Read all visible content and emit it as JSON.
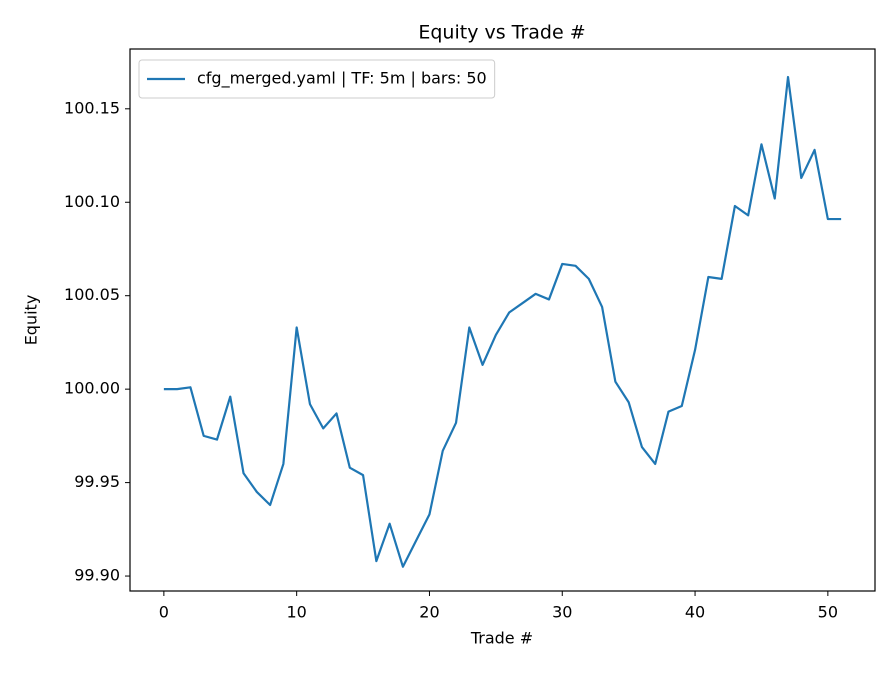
{
  "chart_data": {
    "type": "line",
    "title": "Equity vs Trade #",
    "x_label": "Trade #",
    "y_label": "Equity",
    "x": [
      0,
      1,
      2,
      3,
      4,
      5,
      6,
      7,
      8,
      9,
      10,
      11,
      12,
      13,
      14,
      15,
      16,
      17,
      18,
      19,
      20,
      21,
      22,
      23,
      24,
      25,
      26,
      27,
      28,
      29,
      30,
      31,
      32,
      33,
      34,
      35,
      36,
      37,
      38,
      39,
      40,
      41,
      42,
      43,
      44,
      45,
      46,
      47,
      48,
      49,
      50,
      51
    ],
    "series": [
      {
        "name": "cfg_merged.yaml | TF: 5m | bars: 50",
        "color": "#1f77b4",
        "values": [
          100.0,
          100.0,
          100.001,
          99.975,
          99.973,
          99.996,
          99.955,
          99.945,
          99.938,
          99.96,
          100.033,
          99.992,
          99.979,
          99.987,
          99.958,
          99.954,
          99.908,
          99.928,
          99.905,
          99.919,
          99.933,
          99.967,
          99.982,
          100.033,
          100.013,
          100.029,
          100.041,
          100.046,
          100.051,
          100.048,
          100.067,
          100.066,
          100.059,
          100.044,
          100.004,
          99.993,
          99.969,
          99.96,
          99.988,
          99.991,
          100.021,
          100.06,
          100.059,
          100.098,
          100.093,
          100.131,
          100.102,
          100.167,
          100.113,
          100.128,
          100.091,
          100.091
        ]
      }
    ],
    "xlim": [
      -2.55,
      53.55
    ],
    "ylim": [
      99.892,
      100.182
    ],
    "xticks": [
      0,
      10,
      20,
      30,
      40,
      50
    ],
    "yticks": [
      {
        "value": 99.9,
        "label": "99.90"
      },
      99.95,
      {
        "value": 100.0,
        "label": "100.00"
      },
      100.05,
      {
        "value": 100.1,
        "label": "100.10"
      },
      100.15
    ],
    "legend": "upper left",
    "grid": false
  }
}
